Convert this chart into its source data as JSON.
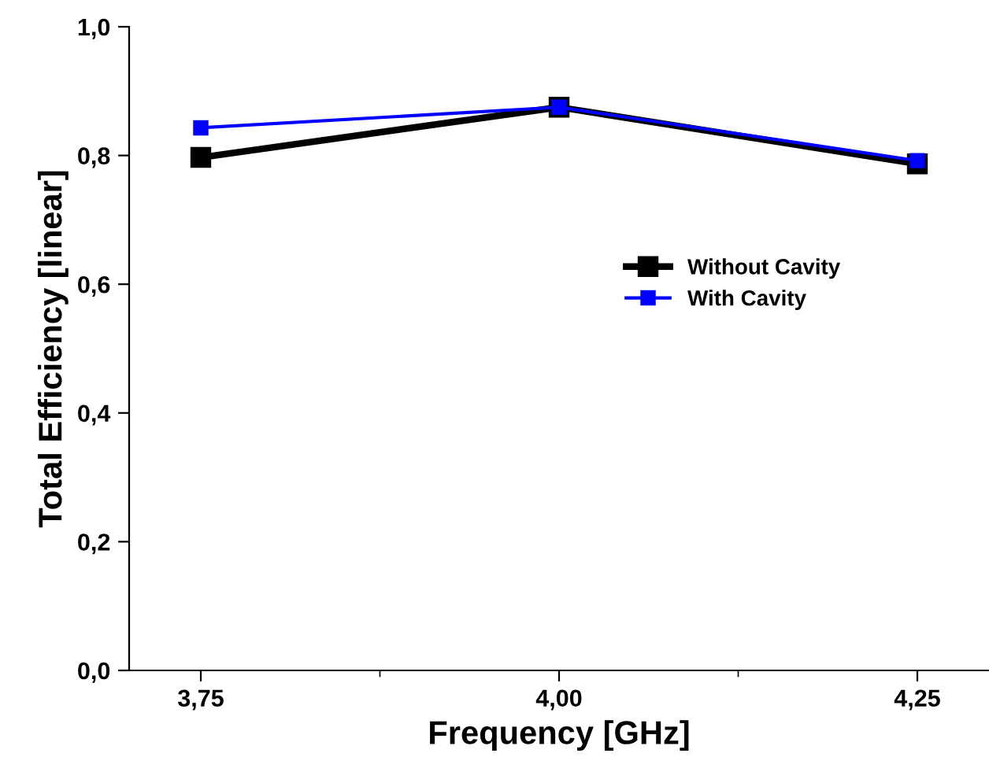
{
  "chart_data": {
    "type": "line",
    "xlabel": "Frequency [GHz]",
    "ylabel": "Total Efficiency [linear]",
    "x": [
      3.75,
      4.0,
      4.25
    ],
    "series": [
      {
        "name": "Without Cavity",
        "color": "#000000",
        "values": [
          0.797,
          0.875,
          0.787
        ]
      },
      {
        "name": "With Cavity",
        "color": "#0000ff",
        "values": [
          0.843,
          0.875,
          0.792
        ]
      }
    ],
    "xlim": [
      3.7,
      4.3
    ],
    "xticks": [
      {
        "value": 3.75,
        "label": "3,75"
      },
      {
        "value": 4.0,
        "label": "4,00"
      },
      {
        "value": 4.25,
        "label": "4,25"
      }
    ],
    "ylim": [
      0,
      1
    ],
    "yticks": [
      {
        "value": 0,
        "label": "0,0"
      },
      {
        "value": 0.2,
        "label": "0,2"
      },
      {
        "value": 0.4,
        "label": "0,4"
      },
      {
        "value": 0.6,
        "label": "0,6"
      },
      {
        "value": 0.8,
        "label": "0,8"
      },
      {
        "value": 1.0,
        "label": "1,0"
      }
    ],
    "marker": "square",
    "line_style": "solid",
    "grid": false,
    "legend": "right"
  }
}
